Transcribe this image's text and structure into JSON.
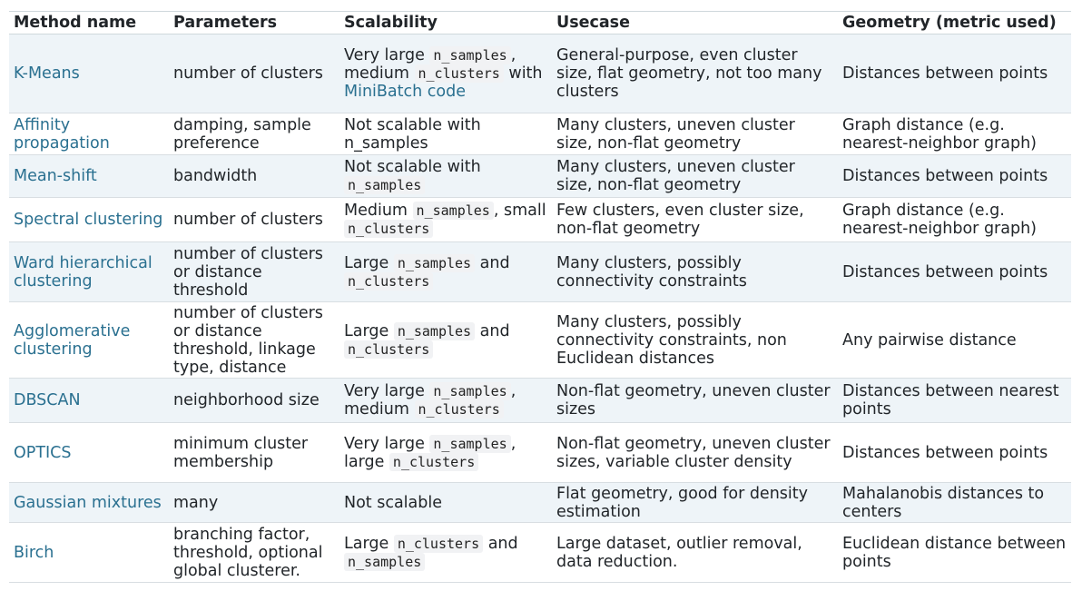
{
  "table": {
    "headers": [
      "Method name",
      "Parameters",
      "Scalability",
      "Usecase",
      "Geometry (metric used)"
    ],
    "rows": [
      {
        "method": "K-Means",
        "parameters": "number of clusters",
        "scalability": [
          {
            "t": "text",
            "v": "Very large "
          },
          {
            "t": "code",
            "v": "n_samples"
          },
          {
            "t": "text",
            "v": ", medium "
          },
          {
            "t": "code",
            "v": "n_clusters"
          },
          {
            "t": "text",
            "v": " with "
          },
          {
            "t": "link",
            "v": "MiniBatch code"
          }
        ],
        "usecase": "General-purpose, even cluster size, flat geometry, not too many clusters",
        "geometry": "Distances between points",
        "height": 87
      },
      {
        "method": "Affinity propagation",
        "parameters": "damping, sample preference",
        "scalability": [
          {
            "t": "text",
            "v": "Not scalable with n_samples"
          }
        ],
        "usecase": "Many clusters, uneven cluster size, non-flat geometry",
        "geometry": "Graph distance (e.g. nearest-neighbor graph)",
        "height": 46
      },
      {
        "method": "Mean-shift",
        "parameters": "bandwidth",
        "scalability": [
          {
            "t": "text",
            "v": "Not scalable with "
          },
          {
            "t": "code",
            "v": "n_samples"
          }
        ],
        "usecase": "Many clusters, uneven cluster size, non-flat geometry",
        "geometry": "Distances between points",
        "height": 47
      },
      {
        "method": "Spectral clustering",
        "parameters": "number of clusters",
        "scalability": [
          {
            "t": "text",
            "v": "Medium "
          },
          {
            "t": "code",
            "v": "n_samples"
          },
          {
            "t": "text",
            "v": ", small "
          },
          {
            "t": "code",
            "v": "n_clusters"
          }
        ],
        "usecase": "Few clusters, even cluster size, non-flat geometry",
        "geometry": "Graph distance (e.g. nearest-neighbor graph)",
        "height": 49
      },
      {
        "method": "Ward hierarchical clustering",
        "parameters": "number of clusters or distance threshold",
        "scalability": [
          {
            "t": "text",
            "v": "Large "
          },
          {
            "t": "code",
            "v": "n_samples"
          },
          {
            "t": "text",
            "v": " and "
          },
          {
            "t": "code",
            "v": "n_clusters"
          }
        ],
        "usecase": "Many clusters, possibly connectivity constraints",
        "geometry": "Distances between points",
        "height": 66
      },
      {
        "method": "Agglomerative clustering",
        "parameters": "number of clusters or distance threshold, linkage type, distance",
        "scalability": [
          {
            "t": "text",
            "v": "Large "
          },
          {
            "t": "code",
            "v": "n_samples"
          },
          {
            "t": "text",
            "v": " and "
          },
          {
            "t": "code",
            "v": "n_clusters"
          }
        ],
        "usecase": "Many clusters, possibly connectivity constraints, non Euclidean distances",
        "geometry": "Any pairwise distance",
        "height": 84
      },
      {
        "method": "DBSCAN",
        "parameters": "neighborhood size",
        "scalability": [
          {
            "t": "text",
            "v": "Very large "
          },
          {
            "t": "code",
            "v": "n_samples"
          },
          {
            "t": "text",
            "v": ", medium "
          },
          {
            "t": "code",
            "v": "n_clusters"
          }
        ],
        "usecase": "Non-flat geometry, uneven cluster sizes",
        "geometry": "Distances between nearest points",
        "height": 49
      },
      {
        "method": "OPTICS",
        "parameters": "minimum cluster membership",
        "scalability": [
          {
            "t": "text",
            "v": "Very large "
          },
          {
            "t": "code",
            "v": "n_samples"
          },
          {
            "t": "text",
            "v": ", large "
          },
          {
            "t": "code",
            "v": "n_clusters"
          }
        ],
        "usecase": "Non-flat geometry, uneven cluster sizes, variable cluster density",
        "geometry": "Distances between points",
        "height": 66
      },
      {
        "method": "Gaussian mixtures",
        "parameters": "many",
        "scalability": [
          {
            "t": "text",
            "v": "Not scalable"
          }
        ],
        "usecase": "Flat geometry, good for density estimation",
        "geometry": "Mahalanobis distances to centers",
        "height": 44
      },
      {
        "method": "Birch",
        "parameters": "branching factor, threshold, optional global clusterer.",
        "scalability": [
          {
            "t": "text",
            "v": "Large "
          },
          {
            "t": "code",
            "v": "n_clusters"
          },
          {
            "t": "text",
            "v": " and "
          },
          {
            "t": "code",
            "v": "n_samples"
          }
        ],
        "usecase": "Large dataset, outlier removal, data reduction.",
        "geometry": "Euclidean distance between points",
        "height": 66
      }
    ]
  }
}
